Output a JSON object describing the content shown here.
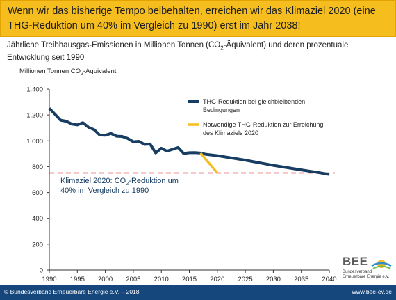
{
  "banner": {
    "text": "Wenn wir das bisherige Tempo beibehalten, erreichen wir das Klimaziel 2020 (eine THG-Reduktion um 40% im Vergleich zu 1990) erst im Jahr 2038!"
  },
  "subtitle": {
    "line1": "Jährliche Treibhausgas-Emissionen in Millionen Tonnen (CO",
    "sub": "2",
    "line2": "-Äquivalent) und deren prozentuale Entwicklung seit 1990"
  },
  "chart_data": {
    "type": "line",
    "ylabel_prefix": "Millionen Tonnen CO",
    "ylabel_sub": "2",
    "ylabel_suffix": "-Äquivalent",
    "xlim": [
      1990,
      2040
    ],
    "ylim": [
      0,
      1400
    ],
    "x_ticks": [
      "1990",
      "1995",
      "2000",
      "2005",
      "2010",
      "2015",
      "2020",
      "2025",
      "2030",
      "2035",
      "2040"
    ],
    "y_ticks": [
      {
        "value": 0,
        "label": "0"
      },
      {
        "value": 200,
        "label": "200"
      },
      {
        "value": 400,
        "label": "400"
      },
      {
        "value": 600,
        "label": "600"
      },
      {
        "value": 800,
        "label": "800"
      },
      {
        "value": 1000,
        "label": "1.000"
      },
      {
        "value": 1200,
        "label": "1.200"
      },
      {
        "value": 1400,
        "label": "1.400"
      }
    ],
    "series": [
      {
        "name": "THG-Reduktion bei gleichbleibenden Bedingungen",
        "color": "#173d63",
        "points": [
          [
            1990,
            1251
          ],
          [
            1991,
            1206
          ],
          [
            1992,
            1160
          ],
          [
            1993,
            1152
          ],
          [
            1994,
            1130
          ],
          [
            1995,
            1123
          ],
          [
            1996,
            1140
          ],
          [
            1997,
            1105
          ],
          [
            1998,
            1086
          ],
          [
            1999,
            1045
          ],
          [
            2000,
            1043
          ],
          [
            2001,
            1057
          ],
          [
            2002,
            1036
          ],
          [
            2003,
            1034
          ],
          [
            2004,
            1018
          ],
          [
            2005,
            993
          ],
          [
            2006,
            996
          ],
          [
            2007,
            972
          ],
          [
            2008,
            975
          ],
          [
            2009,
            906
          ],
          [
            2010,
            943
          ],
          [
            2011,
            920
          ],
          [
            2012,
            934
          ],
          [
            2013,
            948
          ],
          [
            2014,
            902
          ],
          [
            2015,
            908
          ],
          [
            2016,
            909
          ],
          [
            2017,
            905
          ],
          [
            2018,
            895
          ],
          [
            2020,
            885
          ],
          [
            2025,
            850
          ],
          [
            2030,
            810
          ],
          [
            2035,
            775
          ],
          [
            2038,
            755
          ],
          [
            2040,
            740
          ]
        ]
      },
      {
        "name": "Notwendige THG-Reduktion zur Erreichung des Klimaziels 2020",
        "color": "#f5bd1d",
        "points": [
          [
            2017,
            905
          ],
          [
            2020,
            751
          ]
        ]
      }
    ],
    "target_line": {
      "value": 751,
      "color": "#e3262f"
    },
    "annotation": {
      "line1a": "Klimaziel 2020:  CO",
      "line1sub": "2",
      "line1b": "-Reduktion um",
      "line2": "40% im Vergleich zu 1990"
    },
    "legend_position": "top-right",
    "grid": false
  },
  "footer": {
    "left": "© Bundesverband Erneuerbare Energie e.V. – 2018",
    "right": "www.bee-ev.de"
  },
  "logo": {
    "name": "BEE",
    "org_line1": "Bundesverband",
    "org_line2": "Erneuerbare Energie e.V."
  }
}
